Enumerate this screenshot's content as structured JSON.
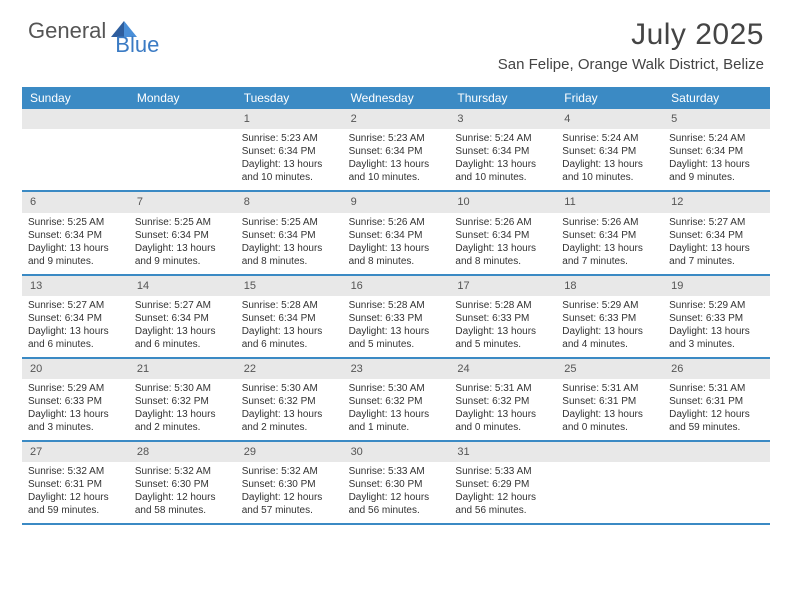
{
  "logo": {
    "part1": "General",
    "part2": "Blue"
  },
  "title": "July 2025",
  "location": "San Felipe, Orange Walk District, Belize",
  "colors": {
    "header_bg": "#3b8ac4",
    "header_text": "#ffffff",
    "daynum_bg": "#e8e8e8",
    "border": "#3b8ac4",
    "logo_gray": "#555555",
    "logo_blue": "#3b7bc4",
    "text": "#333333"
  },
  "day_names": [
    "Sunday",
    "Monday",
    "Tuesday",
    "Wednesday",
    "Thursday",
    "Friday",
    "Saturday"
  ],
  "weeks": [
    [
      null,
      null,
      {
        "n": "1",
        "sr": "5:23 AM",
        "ss": "6:34 PM",
        "dl": "13 hours and 10 minutes."
      },
      {
        "n": "2",
        "sr": "5:23 AM",
        "ss": "6:34 PM",
        "dl": "13 hours and 10 minutes."
      },
      {
        "n": "3",
        "sr": "5:24 AM",
        "ss": "6:34 PM",
        "dl": "13 hours and 10 minutes."
      },
      {
        "n": "4",
        "sr": "5:24 AM",
        "ss": "6:34 PM",
        "dl": "13 hours and 10 minutes."
      },
      {
        "n": "5",
        "sr": "5:24 AM",
        "ss": "6:34 PM",
        "dl": "13 hours and 9 minutes."
      }
    ],
    [
      {
        "n": "6",
        "sr": "5:25 AM",
        "ss": "6:34 PM",
        "dl": "13 hours and 9 minutes."
      },
      {
        "n": "7",
        "sr": "5:25 AM",
        "ss": "6:34 PM",
        "dl": "13 hours and 9 minutes."
      },
      {
        "n": "8",
        "sr": "5:25 AM",
        "ss": "6:34 PM",
        "dl": "13 hours and 8 minutes."
      },
      {
        "n": "9",
        "sr": "5:26 AM",
        "ss": "6:34 PM",
        "dl": "13 hours and 8 minutes."
      },
      {
        "n": "10",
        "sr": "5:26 AM",
        "ss": "6:34 PM",
        "dl": "13 hours and 8 minutes."
      },
      {
        "n": "11",
        "sr": "5:26 AM",
        "ss": "6:34 PM",
        "dl": "13 hours and 7 minutes."
      },
      {
        "n": "12",
        "sr": "5:27 AM",
        "ss": "6:34 PM",
        "dl": "13 hours and 7 minutes."
      }
    ],
    [
      {
        "n": "13",
        "sr": "5:27 AM",
        "ss": "6:34 PM",
        "dl": "13 hours and 6 minutes."
      },
      {
        "n": "14",
        "sr": "5:27 AM",
        "ss": "6:34 PM",
        "dl": "13 hours and 6 minutes."
      },
      {
        "n": "15",
        "sr": "5:28 AM",
        "ss": "6:34 PM",
        "dl": "13 hours and 6 minutes."
      },
      {
        "n": "16",
        "sr": "5:28 AM",
        "ss": "6:33 PM",
        "dl": "13 hours and 5 minutes."
      },
      {
        "n": "17",
        "sr": "5:28 AM",
        "ss": "6:33 PM",
        "dl": "13 hours and 5 minutes."
      },
      {
        "n": "18",
        "sr": "5:29 AM",
        "ss": "6:33 PM",
        "dl": "13 hours and 4 minutes."
      },
      {
        "n": "19",
        "sr": "5:29 AM",
        "ss": "6:33 PM",
        "dl": "13 hours and 3 minutes."
      }
    ],
    [
      {
        "n": "20",
        "sr": "5:29 AM",
        "ss": "6:33 PM",
        "dl": "13 hours and 3 minutes."
      },
      {
        "n": "21",
        "sr": "5:30 AM",
        "ss": "6:32 PM",
        "dl": "13 hours and 2 minutes."
      },
      {
        "n": "22",
        "sr": "5:30 AM",
        "ss": "6:32 PM",
        "dl": "13 hours and 2 minutes."
      },
      {
        "n": "23",
        "sr": "5:30 AM",
        "ss": "6:32 PM",
        "dl": "13 hours and 1 minute."
      },
      {
        "n": "24",
        "sr": "5:31 AM",
        "ss": "6:32 PM",
        "dl": "13 hours and 0 minutes."
      },
      {
        "n": "25",
        "sr": "5:31 AM",
        "ss": "6:31 PM",
        "dl": "13 hours and 0 minutes."
      },
      {
        "n": "26",
        "sr": "5:31 AM",
        "ss": "6:31 PM",
        "dl": "12 hours and 59 minutes."
      }
    ],
    [
      {
        "n": "27",
        "sr": "5:32 AM",
        "ss": "6:31 PM",
        "dl": "12 hours and 59 minutes."
      },
      {
        "n": "28",
        "sr": "5:32 AM",
        "ss": "6:30 PM",
        "dl": "12 hours and 58 minutes."
      },
      {
        "n": "29",
        "sr": "5:32 AM",
        "ss": "6:30 PM",
        "dl": "12 hours and 57 minutes."
      },
      {
        "n": "30",
        "sr": "5:33 AM",
        "ss": "6:30 PM",
        "dl": "12 hours and 56 minutes."
      },
      {
        "n": "31",
        "sr": "5:33 AM",
        "ss": "6:29 PM",
        "dl": "12 hours and 56 minutes."
      },
      null,
      null
    ]
  ],
  "labels": {
    "sunrise": "Sunrise:",
    "sunset": "Sunset:",
    "daylight": "Daylight:"
  }
}
